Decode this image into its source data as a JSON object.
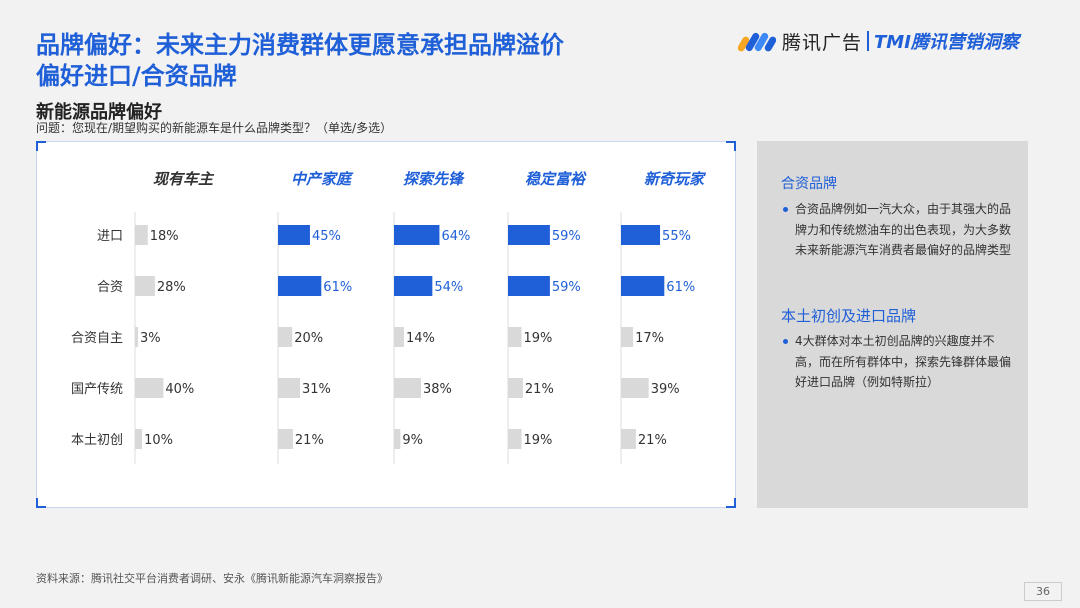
{
  "header": {
    "title_line1": "品牌偏好：未来主力消费群体更愿意承担品牌溢价",
    "title_line2": "偏好进口/合资品牌",
    "logo_brand": "腾讯广告",
    "logo_product": "TMI腾讯营销洞察"
  },
  "subtitle": "新能源品牌偏好",
  "question": "问题：您现在/期望购买的新能源车是什么品牌类型？（单选/多选）",
  "chart_data": {
    "type": "bar",
    "orientation": "horizontal",
    "categories": [
      "进口",
      "合资",
      "合资自主",
      "国产传统",
      "本土初创"
    ],
    "series": [
      {
        "name": "现有车主",
        "values": [
          18,
          28,
          3,
          40,
          10
        ],
        "highlight": [
          false,
          false,
          false,
          false,
          false
        ]
      },
      {
        "name": "中产家庭",
        "values": [
          45,
          61,
          20,
          31,
          21
        ],
        "highlight": [
          true,
          true,
          false,
          false,
          false
        ]
      },
      {
        "name": "探索先锋",
        "values": [
          64,
          54,
          14,
          38,
          9
        ],
        "highlight": [
          true,
          true,
          false,
          false,
          false
        ]
      },
      {
        "name": "稳定富裕",
        "values": [
          59,
          59,
          19,
          21,
          19
        ],
        "highlight": [
          true,
          true,
          false,
          false,
          false
        ]
      },
      {
        "name": "新奇玩家",
        "values": [
          55,
          61,
          17,
          39,
          21
        ],
        "highlight": [
          true,
          true,
          false,
          false,
          false
        ]
      }
    ],
    "value_suffix": "%",
    "colors": {
      "highlight": "#1f5fd8",
      "normal": "#d9d9d9",
      "header_first": "#333333",
      "header_other": "#1f5fd8",
      "axis": "#dddddd"
    }
  },
  "sidebar": {
    "heading1": "合资品牌",
    "bullet1": "合资品牌例如一汽大众，由于其强大的品牌力和传统燃油车的出色表现，为大多数未来新能源汽车消费者最偏好的品牌类型",
    "heading2": "本土初创及进口品牌",
    "bullet2": "4大群体对本土初创品牌的兴趣度并不高，而在所有群体中，探索先锋群体最偏好进口品牌（例如特斯拉）"
  },
  "source": "资料来源：腾讯社交平台消费者调研、安永《腾讯新能源汽车洞察报告》",
  "page_number": "36"
}
